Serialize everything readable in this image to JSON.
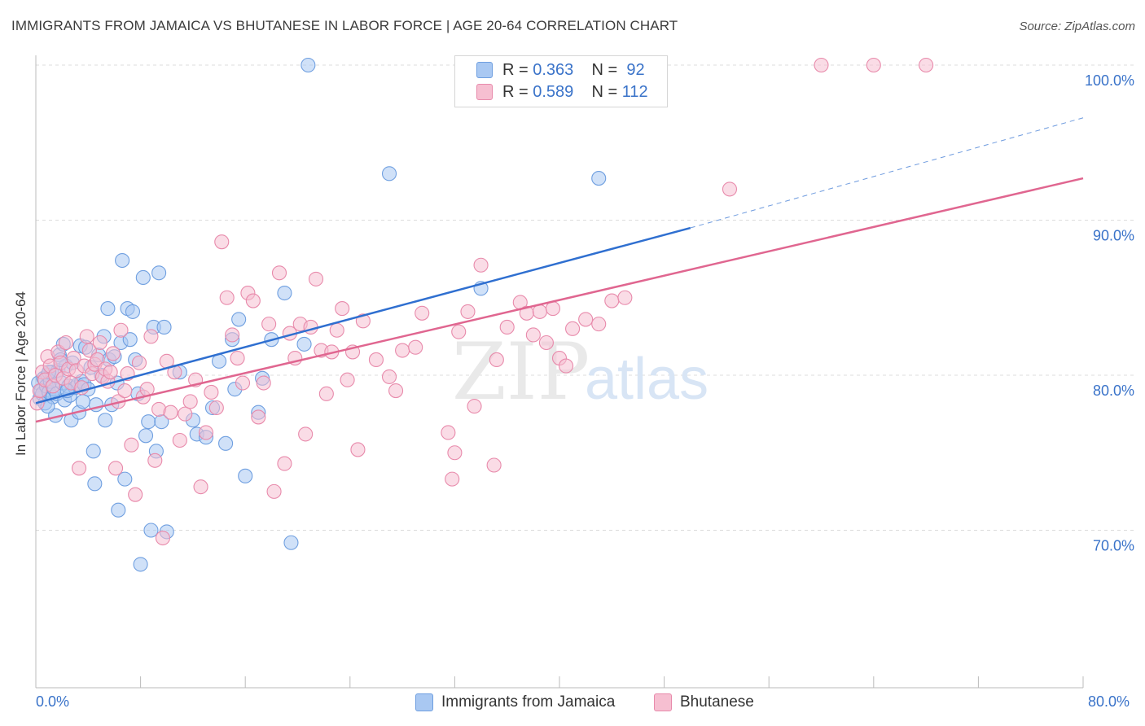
{
  "title": "IMMIGRANTS FROM JAMAICA VS BHUTANESE IN LABOR FORCE | AGE 20-64 CORRELATION CHART",
  "source": "Source: ZipAtlas.com",
  "watermark": "ZIPatlas",
  "legend_top": {
    "rows": [
      {
        "r_label": "R =",
        "r_value": "0.363",
        "n_label": "N =",
        "n_value": "92",
        "color": "#a9c8f2",
        "border": "#6f9fe0"
      },
      {
        "r_label": "R =",
        "r_value": "0.589",
        "n_label": "N =",
        "n_value": "112",
        "color": "#f6bfd1",
        "border": "#e88aab"
      }
    ]
  },
  "chart_data": {
    "type": "scatter",
    "title": "IMMIGRANTS FROM JAMAICA VS BHUTANESE IN LABOR FORCE | AGE 20-64 CORRELATION CHART",
    "xlabel": "",
    "ylabel": "In Labor Force | Age 20-64",
    "xlim": [
      0,
      80
    ],
    "ylim": [
      60.5,
      100.5
    ],
    "x_tick_labels": [
      "0.0%",
      "80.0%"
    ],
    "y_ticks": [
      70,
      80,
      90,
      100
    ],
    "y_tick_labels": [
      "70.0%",
      "80.0%",
      "90.0%",
      "100.0%"
    ],
    "grid": true,
    "legend_position": "bottom",
    "series": [
      {
        "name": "Immigrants from Jamaica",
        "color": "#6f9fe0",
        "fill": "#a9c8f2",
        "line_color": "#2f6fd0",
        "trend": {
          "x0": 0,
          "y0": 78.2,
          "x1": 50,
          "y1": 89.5,
          "dashed_to_x": 80,
          "dashed_to_y": 96.6
        },
        "points": [
          [
            0.2,
            79.5
          ],
          [
            0.3,
            78.5
          ],
          [
            0.4,
            79.0
          ],
          [
            0.5,
            78.8
          ],
          [
            0.6,
            79.8
          ],
          [
            0.7,
            78.2
          ],
          [
            0.8,
            79.3
          ],
          [
            0.9,
            80.0
          ],
          [
            1.0,
            78.9
          ],
          [
            1.1,
            79.6
          ],
          [
            1.2,
            80.2
          ],
          [
            1.3,
            78.6
          ],
          [
            1.4,
            79.1
          ],
          [
            1.5,
            77.4
          ],
          [
            1.6,
            78.8
          ],
          [
            1.7,
            80.3
          ],
          [
            1.8,
            81.3
          ],
          [
            2.0,
            79.5
          ],
          [
            2.1,
            82.0
          ],
          [
            2.2,
            78.4
          ],
          [
            2.3,
            80.6
          ],
          [
            2.5,
            79.3
          ],
          [
            2.6,
            78.7
          ],
          [
            2.7,
            77.1
          ],
          [
            2.8,
            80.8
          ],
          [
            3.0,
            79.2
          ],
          [
            3.2,
            79.4
          ],
          [
            3.3,
            77.6
          ],
          [
            3.4,
            81.9
          ],
          [
            3.5,
            79.6
          ],
          [
            3.7,
            79.4
          ],
          [
            3.8,
            81.8
          ],
          [
            4.0,
            79.1
          ],
          [
            4.2,
            80.5
          ],
          [
            4.4,
            75.1
          ],
          [
            4.5,
            73.0
          ],
          [
            4.6,
            78.1
          ],
          [
            4.8,
            81.3
          ],
          [
            5.0,
            80.0
          ],
          [
            5.2,
            82.5
          ],
          [
            5.3,
            77.1
          ],
          [
            5.5,
            84.3
          ],
          [
            5.6,
            81.0
          ],
          [
            5.8,
            78.1
          ],
          [
            6.0,
            81.2
          ],
          [
            6.2,
            79.5
          ],
          [
            6.3,
            71.3
          ],
          [
            6.5,
            82.1
          ],
          [
            6.6,
            87.4
          ],
          [
            6.8,
            73.3
          ],
          [
            7.0,
            84.3
          ],
          [
            7.2,
            82.3
          ],
          [
            7.4,
            84.1
          ],
          [
            7.6,
            81.0
          ],
          [
            7.8,
            78.8
          ],
          [
            8.0,
            67.8
          ],
          [
            8.2,
            86.3
          ],
          [
            8.4,
            76.1
          ],
          [
            8.6,
            77.0
          ],
          [
            8.8,
            70.0
          ],
          [
            9.0,
            83.1
          ],
          [
            9.2,
            75.1
          ],
          [
            9.4,
            86.6
          ],
          [
            9.6,
            77.0
          ],
          [
            9.8,
            83.1
          ],
          [
            10.0,
            69.9
          ],
          [
            11.0,
            80.2
          ],
          [
            12.0,
            77.1
          ],
          [
            12.3,
            76.2
          ],
          [
            13.0,
            76.0
          ],
          [
            13.5,
            77.9
          ],
          [
            14.0,
            80.9
          ],
          [
            14.5,
            75.6
          ],
          [
            15.0,
            82.3
          ],
          [
            15.2,
            79.1
          ],
          [
            15.5,
            83.6
          ],
          [
            16.0,
            73.5
          ],
          [
            17.0,
            77.6
          ],
          [
            17.3,
            79.8
          ],
          [
            18.0,
            82.3
          ],
          [
            19.0,
            85.3
          ],
          [
            19.5,
            69.2
          ],
          [
            20.5,
            82.0
          ],
          [
            20.8,
            100.0
          ],
          [
            27.0,
            93.0
          ],
          [
            34.0,
            85.6
          ],
          [
            43.0,
            92.7
          ],
          [
            1.0,
            80.2
          ],
          [
            2.4,
            79.0
          ],
          [
            1.9,
            81.0
          ],
          [
            0.9,
            78.0
          ],
          [
            3.6,
            78.3
          ]
        ]
      },
      {
        "name": "Bhutanese",
        "color": "#e88aab",
        "fill": "#f6bfd1",
        "line_color": "#e06690",
        "trend": {
          "x0": 0,
          "y0": 77.0,
          "x1": 80,
          "y1": 92.7
        },
        "points": [
          [
            0.1,
            78.2
          ],
          [
            0.3,
            79.0
          ],
          [
            0.5,
            80.2
          ],
          [
            0.7,
            79.7
          ],
          [
            0.9,
            81.2
          ],
          [
            1.1,
            80.6
          ],
          [
            1.3,
            79.3
          ],
          [
            1.5,
            80.0
          ],
          [
            1.7,
            81.5
          ],
          [
            1.9,
            80.8
          ],
          [
            2.1,
            79.8
          ],
          [
            2.3,
            82.1
          ],
          [
            2.5,
            80.4
          ],
          [
            2.7,
            79.5
          ],
          [
            2.9,
            81.1
          ],
          [
            3.1,
            80.3
          ],
          [
            3.3,
            74.0
          ],
          [
            3.5,
            79.2
          ],
          [
            3.7,
            80.6
          ],
          [
            3.9,
            82.5
          ],
          [
            4.1,
            81.6
          ],
          [
            4.3,
            80.1
          ],
          [
            4.5,
            80.7
          ],
          [
            4.7,
            81.0
          ],
          [
            4.9,
            82.1
          ],
          [
            5.1,
            79.9
          ],
          [
            5.3,
            80.4
          ],
          [
            5.5,
            79.6
          ],
          [
            5.7,
            80.2
          ],
          [
            5.9,
            81.4
          ],
          [
            6.1,
            74.0
          ],
          [
            6.3,
            78.3
          ],
          [
            6.5,
            82.9
          ],
          [
            6.8,
            79.0
          ],
          [
            7.0,
            80.1
          ],
          [
            7.3,
            75.5
          ],
          [
            7.6,
            72.3
          ],
          [
            7.9,
            80.8
          ],
          [
            8.2,
            78.6
          ],
          [
            8.5,
            79.1
          ],
          [
            8.8,
            82.5
          ],
          [
            9.1,
            74.5
          ],
          [
            9.4,
            77.8
          ],
          [
            9.7,
            69.5
          ],
          [
            10.0,
            80.9
          ],
          [
            10.3,
            77.6
          ],
          [
            10.6,
            80.2
          ],
          [
            11.0,
            75.8
          ],
          [
            11.4,
            77.5
          ],
          [
            11.8,
            78.3
          ],
          [
            12.2,
            79.7
          ],
          [
            12.6,
            72.8
          ],
          [
            13.0,
            76.3
          ],
          [
            13.4,
            78.9
          ],
          [
            13.8,
            77.9
          ],
          [
            14.2,
            88.6
          ],
          [
            14.6,
            85.0
          ],
          [
            15.0,
            82.6
          ],
          [
            15.4,
            81.1
          ],
          [
            15.8,
            79.5
          ],
          [
            16.2,
            85.3
          ],
          [
            16.6,
            84.8
          ],
          [
            17.0,
            77.3
          ],
          [
            17.4,
            79.5
          ],
          [
            17.8,
            83.3
          ],
          [
            18.2,
            72.5
          ],
          [
            18.6,
            86.6
          ],
          [
            19.0,
            74.3
          ],
          [
            19.4,
            82.7
          ],
          [
            19.8,
            81.1
          ],
          [
            20.2,
            83.3
          ],
          [
            20.6,
            76.2
          ],
          [
            21.0,
            83.1
          ],
          [
            21.4,
            86.2
          ],
          [
            21.8,
            81.6
          ],
          [
            22.2,
            78.8
          ],
          [
            22.6,
            81.5
          ],
          [
            23.0,
            82.9
          ],
          [
            23.4,
            84.3
          ],
          [
            23.8,
            79.7
          ],
          [
            24.2,
            81.5
          ],
          [
            24.6,
            75.2
          ],
          [
            25.0,
            83.5
          ],
          [
            26.0,
            81.0
          ],
          [
            27.0,
            79.9
          ],
          [
            27.5,
            79.0
          ],
          [
            28.0,
            81.6
          ],
          [
            29.0,
            81.8
          ],
          [
            29.5,
            84.0
          ],
          [
            31.5,
            76.3
          ],
          [
            31.8,
            73.3
          ],
          [
            32.0,
            75.0
          ],
          [
            32.3,
            82.8
          ],
          [
            33.0,
            84.1
          ],
          [
            33.5,
            78.0
          ],
          [
            34.0,
            87.1
          ],
          [
            35.0,
            74.2
          ],
          [
            35.2,
            81.0
          ],
          [
            36.0,
            83.1
          ],
          [
            37.0,
            84.7
          ],
          [
            37.5,
            84.0
          ],
          [
            38.0,
            82.6
          ],
          [
            38.5,
            84.1
          ],
          [
            39.0,
            82.1
          ],
          [
            39.5,
            84.3
          ],
          [
            40.0,
            81.1
          ],
          [
            40.5,
            80.6
          ],
          [
            41.0,
            83.0
          ],
          [
            42.0,
            83.6
          ],
          [
            43.0,
            83.3
          ],
          [
            44.0,
            84.8
          ],
          [
            45.0,
            85.0
          ],
          [
            53.0,
            92.0
          ],
          [
            60.0,
            100.0
          ],
          [
            64.0,
            100.0
          ],
          [
            68.0,
            100.0
          ]
        ]
      }
    ]
  },
  "bottom_legend": {
    "items": [
      {
        "label": "Immigrants from Jamaica"
      },
      {
        "label": "Bhutanese"
      }
    ]
  }
}
